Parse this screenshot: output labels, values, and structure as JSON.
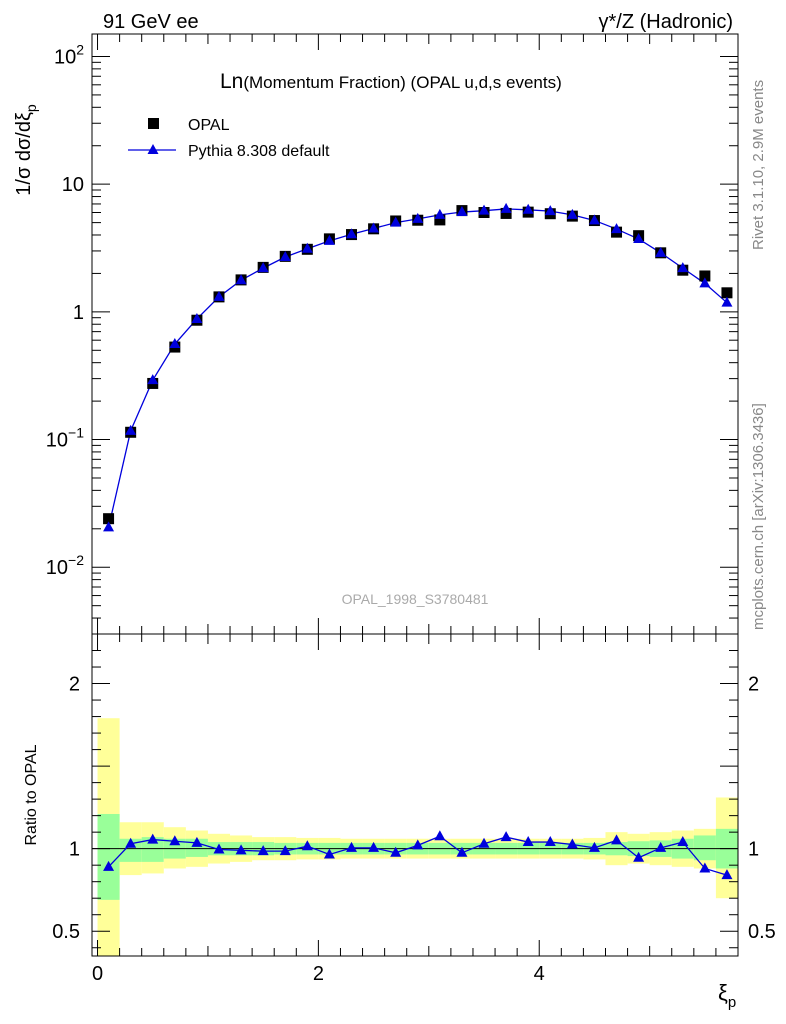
{
  "header": {
    "left": "91 GeV ee",
    "right": "γ*/Z (Hadronic)"
  },
  "side_labels": {
    "rivet": "Rivet 3.1.10,  2.9M events",
    "mcplots": "mcplots.cern.ch [arXiv:1306.3436]"
  },
  "chart_data": {
    "type": "scatter",
    "title_big": "Ln",
    "title_rest": "(Momentum Fraction) (OPAL u,d,s events)",
    "watermark": "OPAL_1998_S3780481",
    "xlabel": "ξ",
    "xlabel_sub": "p",
    "ylabel": "1/σ dσ/dξ",
    "ylabel_sub": "p",
    "ratio_ylabel": "Ratio to OPAL",
    "x_range": [
      -0.05,
      5.8
    ],
    "y_range_log": [
      0.003,
      150
    ],
    "ratio_range": [
      0.35,
      2.3
    ],
    "x_ticks": [
      "0",
      "2",
      "4"
    ],
    "x_tick_values": [
      0,
      2,
      4
    ],
    "y_ticks": [
      {
        "value": 100,
        "base": "10",
        "exp": "2"
      },
      {
        "value": 10,
        "base": "10",
        "exp": ""
      },
      {
        "value": 1,
        "base": "1",
        "exp": ""
      },
      {
        "value": 0.1,
        "base": "10",
        "exp": "−1"
      },
      {
        "value": 0.01,
        "base": "10",
        "exp": "−2"
      }
    ],
    "ratio_ticks": [
      {
        "value": 2,
        "label": "2"
      },
      {
        "value": 1,
        "label": "1"
      },
      {
        "value": 0.5,
        "label": "0.5"
      }
    ],
    "legend": {
      "placement": "top-left",
      "data_label": "OPAL",
      "mc_label": "Pythia 8.308 default"
    },
    "colors": {
      "data": "#000000",
      "mc": "#0000dd",
      "band_inner": "#99ff99",
      "band_outer": "#ffff99"
    },
    "x": [
      0.1,
      0.3,
      0.5,
      0.7,
      0.9,
      1.1,
      1.3,
      1.5,
      1.7,
      1.9,
      2.1,
      2.3,
      2.5,
      2.7,
      2.9,
      3.1,
      3.3,
      3.5,
      3.7,
      3.9,
      4.1,
      4.3,
      4.5,
      4.7,
      4.9,
      5.1,
      5.3,
      5.5,
      5.7
    ],
    "bin_width": 0.2,
    "series": [
      {
        "name": "OPAL",
        "values": [
          0.024,
          0.114,
          0.275,
          0.53,
          0.86,
          1.31,
          1.78,
          2.23,
          2.72,
          3.09,
          3.73,
          4.03,
          4.47,
          5.15,
          5.22,
          5.25,
          6.21,
          6.0,
          5.9,
          6.04,
          5.87,
          5.62,
          5.19,
          4.21,
          3.95,
          2.9,
          2.12,
          1.91,
          1.41
        ]
      },
      {
        "name": "Pythia 8.308 default",
        "values": [
          0.0205,
          0.117,
          0.292,
          0.56,
          0.88,
          1.31,
          1.77,
          2.2,
          2.69,
          3.12,
          3.6,
          4.05,
          4.5,
          5.0,
          5.35,
          5.75,
          6.05,
          6.2,
          6.4,
          6.3,
          6.15,
          5.75,
          5.2,
          4.45,
          3.72,
          2.9,
          2.2,
          1.67,
          1.18
        ]
      }
    ],
    "ratio": [
      0.89,
      1.03,
      1.055,
      1.045,
      1.035,
      0.995,
      0.99,
      0.985,
      0.985,
      1.015,
      0.965,
      1.005,
      1.005,
      0.975,
      1.02,
      1.075,
      0.975,
      1.03,
      1.07,
      1.04,
      1.04,
      1.025,
      1.005,
      1.05,
      0.945,
      1.005,
      1.04,
      0.88,
      0.84
    ],
    "band_inner": [
      [
        0.69,
        1.21
      ],
      [
        0.92,
        1.06
      ],
      [
        0.92,
        1.07
      ],
      [
        0.94,
        1.06
      ],
      [
        0.95,
        1.06
      ],
      [
        0.96,
        1.04
      ],
      [
        0.96,
        1.04
      ],
      [
        0.96,
        1.04
      ],
      [
        0.965,
        1.035
      ],
      [
        0.965,
        1.035
      ],
      [
        0.965,
        1.035
      ],
      [
        0.965,
        1.035
      ],
      [
        0.965,
        1.035
      ],
      [
        0.965,
        1.035
      ],
      [
        0.965,
        1.035
      ],
      [
        0.965,
        1.035
      ],
      [
        0.965,
        1.035
      ],
      [
        0.965,
        1.035
      ],
      [
        0.965,
        1.035
      ],
      [
        0.965,
        1.035
      ],
      [
        0.965,
        1.035
      ],
      [
        0.965,
        1.035
      ],
      [
        0.965,
        1.035
      ],
      [
        0.96,
        1.04
      ],
      [
        0.955,
        1.045
      ],
      [
        0.95,
        1.05
      ],
      [
        0.94,
        1.06
      ],
      [
        0.93,
        1.08
      ],
      [
        0.88,
        1.12
      ]
    ],
    "band_outer": [
      [
        0.33,
        1.79
      ],
      [
        0.84,
        1.16
      ],
      [
        0.85,
        1.16
      ],
      [
        0.88,
        1.13
      ],
      [
        0.89,
        1.11
      ],
      [
        0.91,
        1.09
      ],
      [
        0.92,
        1.08
      ],
      [
        0.93,
        1.07
      ],
      [
        0.93,
        1.07
      ],
      [
        0.935,
        1.065
      ],
      [
        0.935,
        1.065
      ],
      [
        0.94,
        1.06
      ],
      [
        0.94,
        1.06
      ],
      [
        0.94,
        1.06
      ],
      [
        0.94,
        1.06
      ],
      [
        0.94,
        1.06
      ],
      [
        0.94,
        1.06
      ],
      [
        0.94,
        1.06
      ],
      [
        0.94,
        1.06
      ],
      [
        0.94,
        1.06
      ],
      [
        0.94,
        1.06
      ],
      [
        0.94,
        1.06
      ],
      [
        0.935,
        1.065
      ],
      [
        0.9,
        1.1
      ],
      [
        0.91,
        1.09
      ],
      [
        0.9,
        1.1
      ],
      [
        0.89,
        1.11
      ],
      [
        0.88,
        1.12
      ],
      [
        0.7,
        1.31
      ]
    ]
  }
}
